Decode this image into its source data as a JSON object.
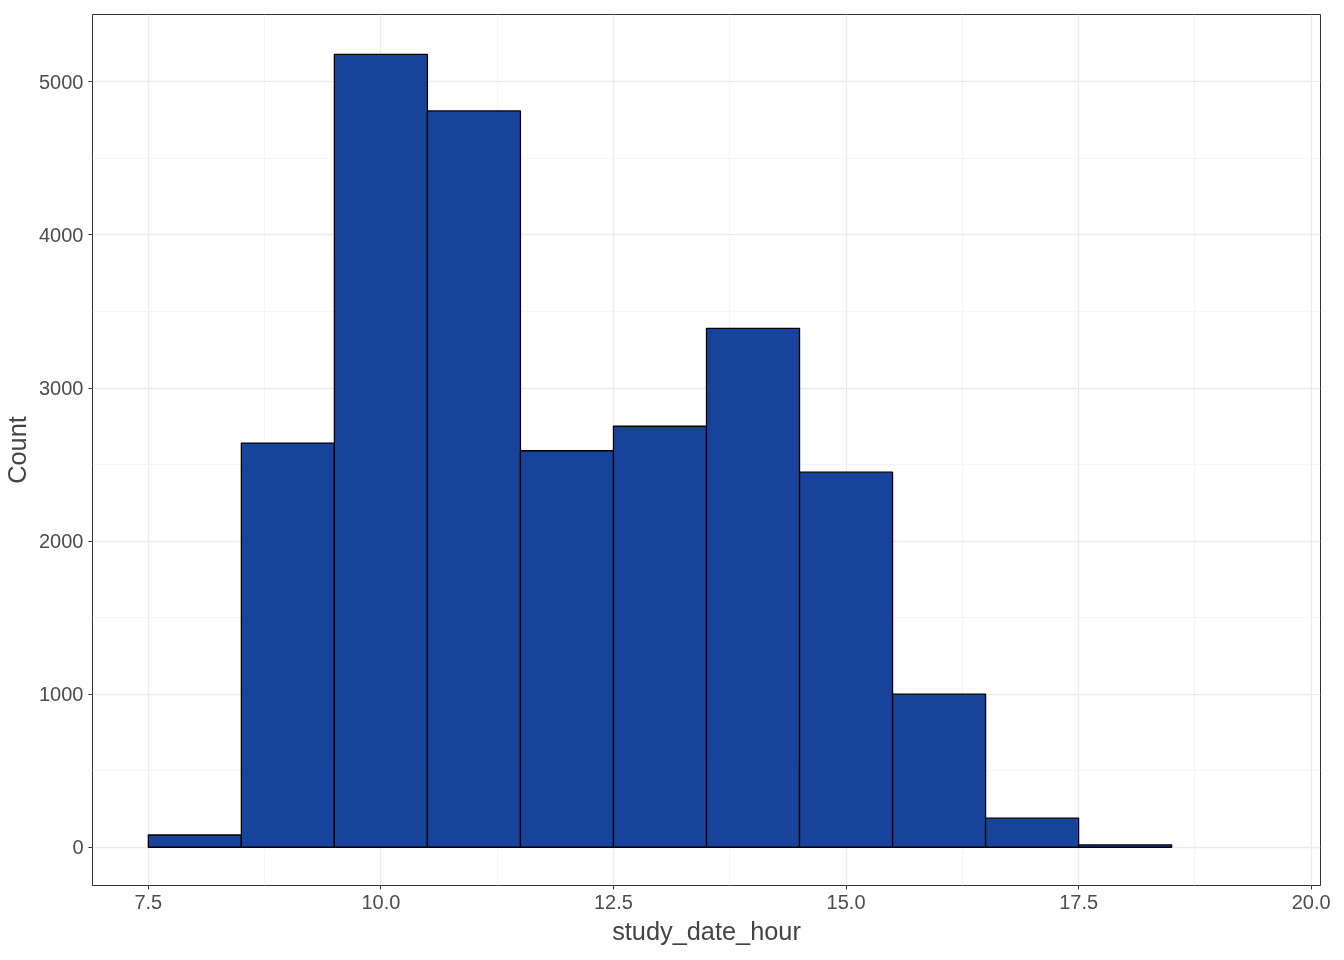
{
  "chart_data": {
    "type": "histogram",
    "xlabel": "study_date_hour",
    "ylabel": "Count",
    "bins": [
      7.5,
      8.5,
      9.5,
      10.5,
      11.5,
      12.5,
      13.5,
      14.5,
      15.5,
      16.5,
      17.5,
      18.5,
      19.5
    ],
    "values": [
      80,
      2640,
      5180,
      4810,
      2590,
      2750,
      3390,
      2450,
      1000,
      190,
      15,
      null
    ],
    "color": "#18439a",
    "xlim": [
      6.9,
      20.1
    ],
    "ylim": [
      -250,
      5440
    ],
    "xticks": [
      {
        "value": 7.5,
        "label": "7.5"
      },
      {
        "value": 10,
        "label": "10.0"
      },
      {
        "value": 12.5,
        "label": "12.5"
      },
      {
        "value": 15,
        "label": "15.0"
      },
      {
        "value": 17.5,
        "label": "17.5"
      },
      {
        "value": 20,
        "label": "20.0"
      }
    ],
    "yticks": [
      0,
      1000,
      2000,
      3000,
      4000,
      5000
    ],
    "grid": true
  }
}
